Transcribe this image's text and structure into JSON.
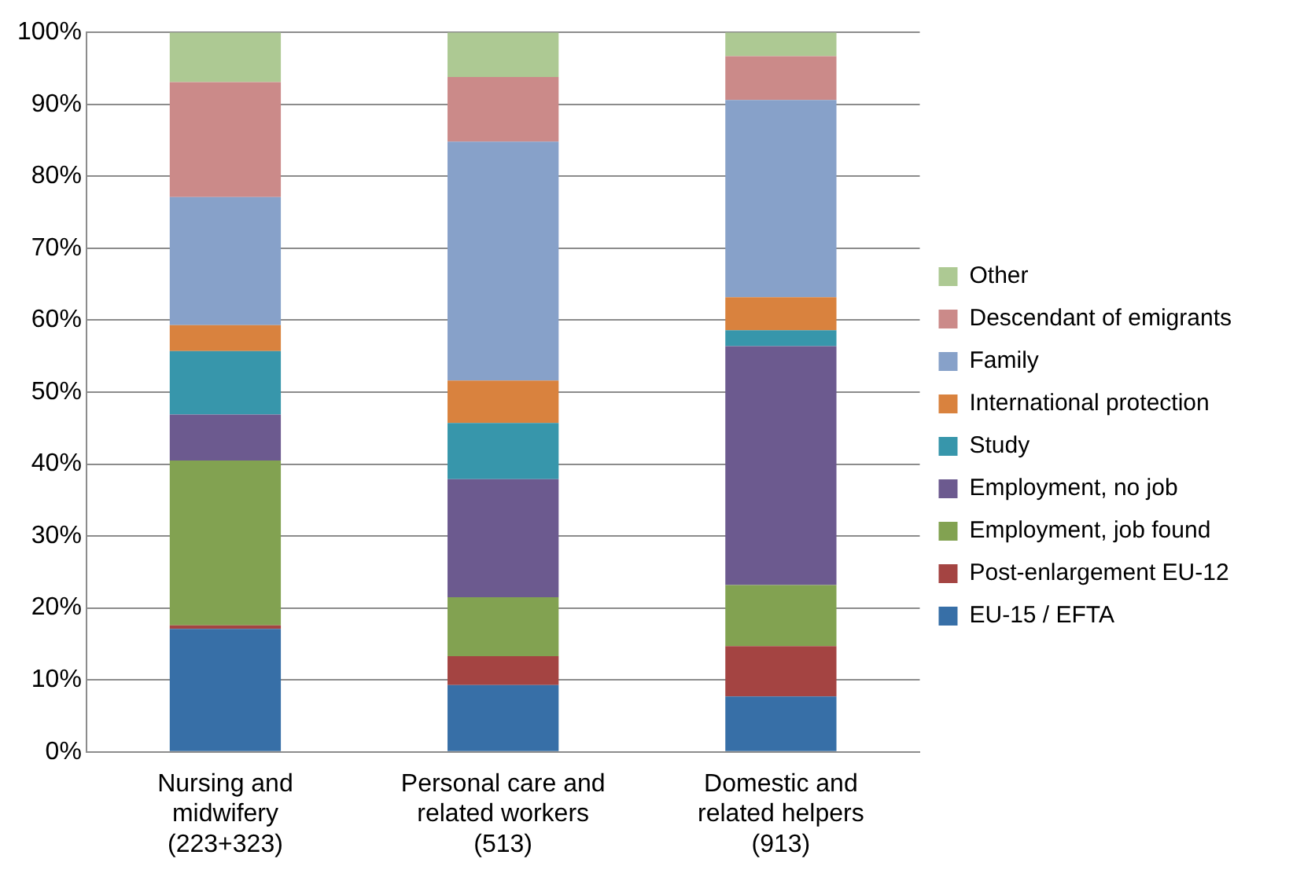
{
  "chart_data": {
    "type": "bar",
    "stacked": true,
    "categories": [
      "Nursing and\nmidwifery\n(223+323)",
      "Personal care and\nrelated workers\n(513)",
      "Domestic and\nrelated helpers\n(913)"
    ],
    "series": [
      {
        "name": "EU-15 / EFTA",
        "color": "#376fa7",
        "values": [
          17.1,
          9.3,
          7.7
        ]
      },
      {
        "name": "Post-enlargement EU-12",
        "color": "#a44442",
        "values": [
          0.5,
          4.0,
          7.0
        ]
      },
      {
        "name": "Employment, job found",
        "color": "#82a251",
        "values": [
          22.9,
          8.2,
          8.5
        ]
      },
      {
        "name": "Employment, no job",
        "color": "#6c5a8f",
        "values": [
          6.4,
          16.4,
          33.2
        ]
      },
      {
        "name": "Study",
        "color": "#3796ab",
        "values": [
          8.8,
          7.8,
          2.2
        ]
      },
      {
        "name": "International protection",
        "color": "#d9823e",
        "values": [
          3.6,
          5.9,
          4.6
        ]
      },
      {
        "name": "Family",
        "color": "#87a1c9",
        "values": [
          17.8,
          33.2,
          27.4
        ]
      },
      {
        "name": "Descendant of emigrants",
        "color": "#cb8a89",
        "values": [
          16.0,
          9.0,
          6.1
        ]
      },
      {
        "name": "Other",
        "color": "#adc993",
        "values": [
          6.9,
          6.2,
          3.3
        ]
      }
    ],
    "ylim": [
      0,
      100
    ],
    "yticks": [
      {
        "value": 0,
        "label": "0%"
      },
      {
        "value": 10,
        "label": "10%"
      },
      {
        "value": 20,
        "label": "20%"
      },
      {
        "value": 30,
        "label": "30%"
      },
      {
        "value": 40,
        "label": "40%"
      },
      {
        "value": 50,
        "label": "50%"
      },
      {
        "value": 60,
        "label": "60%"
      },
      {
        "value": 70,
        "label": "70%"
      },
      {
        "value": 80,
        "label": "80%"
      },
      {
        "value": 90,
        "label": "90%"
      },
      {
        "value": 100,
        "label": "100%"
      }
    ],
    "grid": "y",
    "legend": "right"
  }
}
